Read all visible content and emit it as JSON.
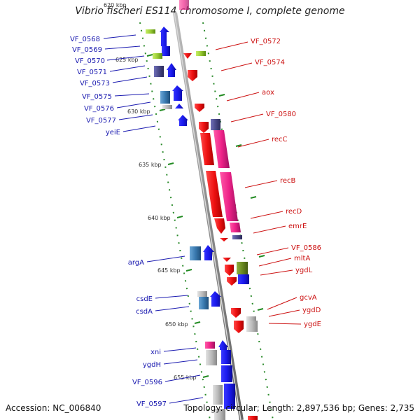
{
  "title": "Vibrio fischeri ES114 chromosome I, complete genome",
  "footer": {
    "accession": "Accession: NC_006840",
    "summary": "Topology: circular; Length: 2,897,536 bp; Genes: 2,735"
  },
  "map": {
    "kbp_labels": [
      "620 kbp",
      "625 kbp",
      "630 kbp",
      "635 kbp",
      "640 kbp",
      "645 kbp",
      "650 kbp",
      "655 kbp"
    ],
    "left_genes": [
      "VF_0568",
      "VF_0569",
      "VF_0570",
      "VF_0571",
      "VF_0573",
      "VF_0575",
      "VF_0576",
      "VF_0577",
      "yeiE",
      "argA",
      "csdE",
      "csdA",
      "xni",
      "ygdH",
      "VF_0596",
      "VF_0597"
    ],
    "right_genes": [
      "VF_0572",
      "VF_0574",
      "aox",
      "VF_0580",
      "recC",
      "recB",
      "recD",
      "emrE",
      "VF_0586",
      "mltA",
      "ygdL",
      "gcvA",
      "ygdD",
      "ygdE"
    ],
    "colors": {
      "backbone": "#8c8c8c",
      "forward_gene": "#1a1aee",
      "reverse_gene": "#ee1111",
      "left_label": "#1a1ab0",
      "right_label": "#cc1111",
      "tick": "#228b22",
      "magenta": "#ee2288",
      "steel_blue": "#3a7ab0",
      "dark_slate": "#4a4a88",
      "olive": "#6a8a22",
      "lime": "#99cc33",
      "gray": "#bbbbbb"
    }
  }
}
